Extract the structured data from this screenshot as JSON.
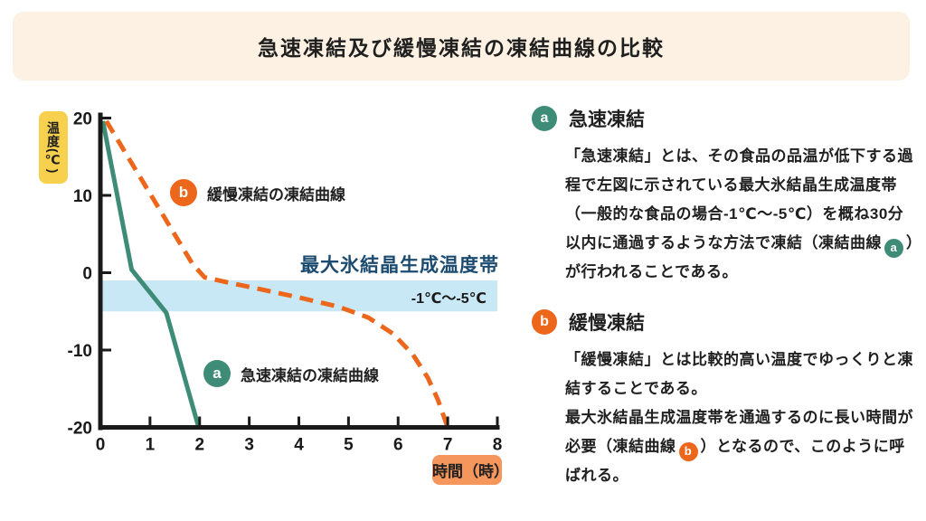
{
  "title": "急速凍結及び緩慢凍結の凍結曲線の比較",
  "chart_data": {
    "type": "line",
    "xlabel": "時間（時）",
    "ylabel": "温度(℃)",
    "xlim": [
      0,
      8
    ],
    "ylim": [
      -20,
      20
    ],
    "x_ticks": [
      0,
      1,
      2,
      3,
      4,
      5,
      6,
      7,
      8
    ],
    "y_ticks": [
      20,
      10,
      0,
      -10,
      -20
    ],
    "grid": false,
    "legend_position": "inline-annotations",
    "series": [
      {
        "name": "急速凍結の凍結曲線",
        "marker": "a",
        "color": "#3e8c77",
        "style": "solid",
        "points": [
          [
            0.05,
            19.6
          ],
          [
            0.63,
            0.4
          ],
          [
            1.33,
            -5.2
          ],
          [
            1.98,
            -20
          ]
        ]
      },
      {
        "name": "緩慢凍結の凍結曲線",
        "marker": "b",
        "color": "#ec671b",
        "style": "dashed",
        "points": [
          [
            0.12,
            19.6
          ],
          [
            1.85,
            1.2
          ],
          [
            2.1,
            -0.6
          ],
          [
            2.6,
            -1.3
          ],
          [
            3.2,
            -2.1
          ],
          [
            4.0,
            -3.2
          ],
          [
            4.8,
            -4.4
          ],
          [
            5.4,
            -5.8
          ],
          [
            5.9,
            -7.9
          ],
          [
            6.3,
            -10.6
          ],
          [
            6.6,
            -13.6
          ],
          [
            6.8,
            -16.4
          ],
          [
            7.0,
            -20
          ]
        ]
      }
    ],
    "band": {
      "label": "最大氷結晶生成温度帯",
      "range_label": "-1℃～-5℃",
      "from": -1,
      "to": -5,
      "color": "#c9e8f6",
      "label_color": "#1c4b70"
    }
  },
  "sections": {
    "a": {
      "badge": "a",
      "heading": "急速凍結",
      "body_part1": "「急速凍結」とは、その食品の品温が低下する過程で左図に示されている最大氷結晶生成温度帯（一般的な食品の場合-1℃～-5℃）を概ね30分以内に通過するような方法で凍結（凍結曲線",
      "body_part2": "）が行われることである。"
    },
    "b": {
      "badge": "b",
      "heading": "緩慢凍結",
      "body_line1": "「緩慢凍結」とは比較的高い温度でゆっくりと凍結することである。",
      "body_part1": "最大氷結晶生成温度帯を通過するのに長い時間が必要（凍結曲線",
      "body_part2": "）となるので、このように呼ばれる。"
    }
  },
  "colors": {
    "banner_bg": "#fcf1e2",
    "teal": "#3e8c77",
    "orange": "#ec671b",
    "band_blue": "#c9e8f6",
    "navy": "#1c4b70",
    "yellow_badge": "#f7d14e",
    "salmon_badge": "#f5975d",
    "axis_black": "#1a1a1a"
  }
}
